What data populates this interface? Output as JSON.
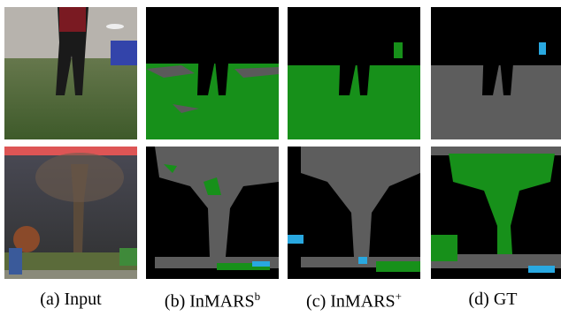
{
  "captions": [
    {
      "label": "(a) Input"
    },
    {
      "label": "(b) InMARS",
      "sup": "b"
    },
    {
      "label": "(c) InMARS",
      "sup": "+"
    },
    {
      "label": "(d) GT"
    }
  ]
}
